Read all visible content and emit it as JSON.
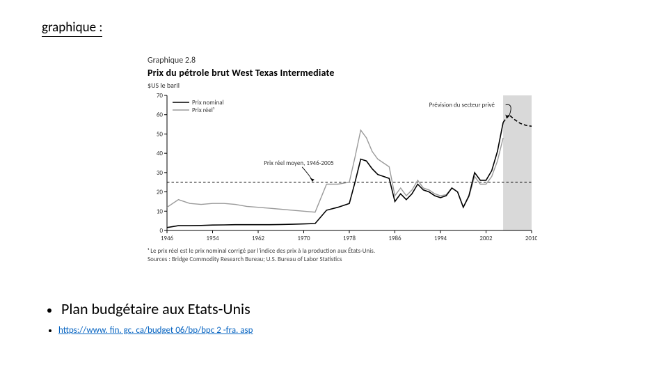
{
  "header": {
    "text": "graphique :"
  },
  "chart": {
    "type": "line",
    "number_label": "Graphique 2.8",
    "title": "Prix du pétrole brut West Texas Intermediate",
    "y_axis_label": "$US le baril",
    "legend": {
      "nominal": "Prix nominal",
      "real": "Prix réel¹"
    },
    "annotations": {
      "avg_label": "Prix réel moyen, 1946-2005",
      "forecast_label": "Prévision du secteur privé"
    },
    "footnote_line1": "¹ Le prix réel est le prix nominal corrigé par l'indice des prix à la production aux États-Unis.",
    "footnote_line2": "Sources : Bridge Commodity Research Bureau; U.S. Bureau of Labor Statistics",
    "x_ticks": [
      1946,
      1954,
      1962,
      1970,
      1978,
      1986,
      1994,
      2002,
      2010
    ],
    "y_ticks": [
      0,
      10,
      20,
      30,
      40,
      50,
      60,
      70
    ],
    "ylim": [
      0,
      70
    ],
    "xlim": [
      1946,
      2010
    ],
    "avg_line_value": 25,
    "forecast_start_year": 2005,
    "colors": {
      "background": "#ffffff",
      "axis": "#000000",
      "grid": "#000000",
      "nominal_line": "#000000",
      "real_line": "#9a9a9a",
      "forecast_band": "#d9d9d9",
      "text": "#333333",
      "dash": "#000000"
    },
    "line_widths": {
      "nominal": 1.6,
      "real": 1.4,
      "avg_dash": 1.0
    },
    "font_sizes": {
      "number": 12,
      "title": 14,
      "axis_label": 10,
      "tick": 9,
      "legend": 9,
      "annotation": 9,
      "footnote": 9
    },
    "series_nominal": [
      [
        1946,
        1.5
      ],
      [
        1948,
        2.5
      ],
      [
        1950,
        2.5
      ],
      [
        1952,
        2.6
      ],
      [
        1954,
        2.8
      ],
      [
        1956,
        2.9
      ],
      [
        1958,
        3.0
      ],
      [
        1960,
        3.0
      ],
      [
        1962,
        3.0
      ],
      [
        1964,
        3.0
      ],
      [
        1966,
        3.1
      ],
      [
        1968,
        3.2
      ],
      [
        1970,
        3.4
      ],
      [
        1972,
        3.6
      ],
      [
        1974,
        10.5
      ],
      [
        1976,
        12.0
      ],
      [
        1978,
        14.0
      ],
      [
        1979,
        25.0
      ],
      [
        1980,
        37.0
      ],
      [
        1981,
        36.0
      ],
      [
        1982,
        32.0
      ],
      [
        1983,
        29.0
      ],
      [
        1984,
        28.0
      ],
      [
        1985,
        27.0
      ],
      [
        1986,
        15.0
      ],
      [
        1987,
        19.0
      ],
      [
        1988,
        16.0
      ],
      [
        1989,
        19.0
      ],
      [
        1990,
        24.0
      ],
      [
        1991,
        21.0
      ],
      [
        1992,
        20.0
      ],
      [
        1993,
        18.0
      ],
      [
        1994,
        17.0
      ],
      [
        1995,
        18.0
      ],
      [
        1996,
        22.0
      ],
      [
        1997,
        20.0
      ],
      [
        1998,
        12.0
      ],
      [
        1999,
        18.0
      ],
      [
        2000,
        30.0
      ],
      [
        2001,
        26.0
      ],
      [
        2002,
        26.0
      ],
      [
        2003,
        31.0
      ],
      [
        2004,
        41.0
      ],
      [
        2005,
        56.0
      ]
    ],
    "series_nominal_forecast": [
      [
        2005,
        56.0
      ],
      [
        2006,
        60.0
      ],
      [
        2007,
        57.5
      ],
      [
        2008,
        55.5
      ],
      [
        2009,
        54.5
      ],
      [
        2010,
        54.0
      ]
    ],
    "series_real": [
      [
        1946,
        12.0
      ],
      [
        1948,
        16.0
      ],
      [
        1950,
        14.0
      ],
      [
        1952,
        13.5
      ],
      [
        1954,
        14.0
      ],
      [
        1956,
        14.0
      ],
      [
        1958,
        13.5
      ],
      [
        1960,
        12.5
      ],
      [
        1962,
        12.0
      ],
      [
        1964,
        11.5
      ],
      [
        1966,
        11.0
      ],
      [
        1968,
        10.5
      ],
      [
        1970,
        10.0
      ],
      [
        1972,
        9.5
      ],
      [
        1974,
        24.0
      ],
      [
        1976,
        24.0
      ],
      [
        1978,
        25.0
      ],
      [
        1979,
        38.0
      ],
      [
        1980,
        52.0
      ],
      [
        1981,
        48.0
      ],
      [
        1982,
        41.0
      ],
      [
        1983,
        37.0
      ],
      [
        1984,
        35.0
      ],
      [
        1985,
        33.0
      ],
      [
        1986,
        18.0
      ],
      [
        1987,
        22.0
      ],
      [
        1988,
        18.0
      ],
      [
        1989,
        21.0
      ],
      [
        1990,
        26.0
      ],
      [
        1991,
        22.0
      ],
      [
        1992,
        21.0
      ],
      [
        1993,
        19.0
      ],
      [
        1994,
        18.0
      ],
      [
        1995,
        18.5
      ],
      [
        1996,
        22.0
      ],
      [
        1997,
        20.0
      ],
      [
        1998,
        12.0
      ],
      [
        1999,
        17.5
      ],
      [
        2000,
        28.0
      ],
      [
        2001,
        24.0
      ],
      [
        2002,
        24.0
      ],
      [
        2003,
        28.0
      ],
      [
        2004,
        36.0
      ],
      [
        2005,
        48.0
      ]
    ]
  },
  "bullets": {
    "item1": "Plan budgétaire aux Etats-Unis",
    "item2_link_text": "https://www. fin. gc. ca/budget 06/bp/bpc 2 -fra. asp"
  }
}
